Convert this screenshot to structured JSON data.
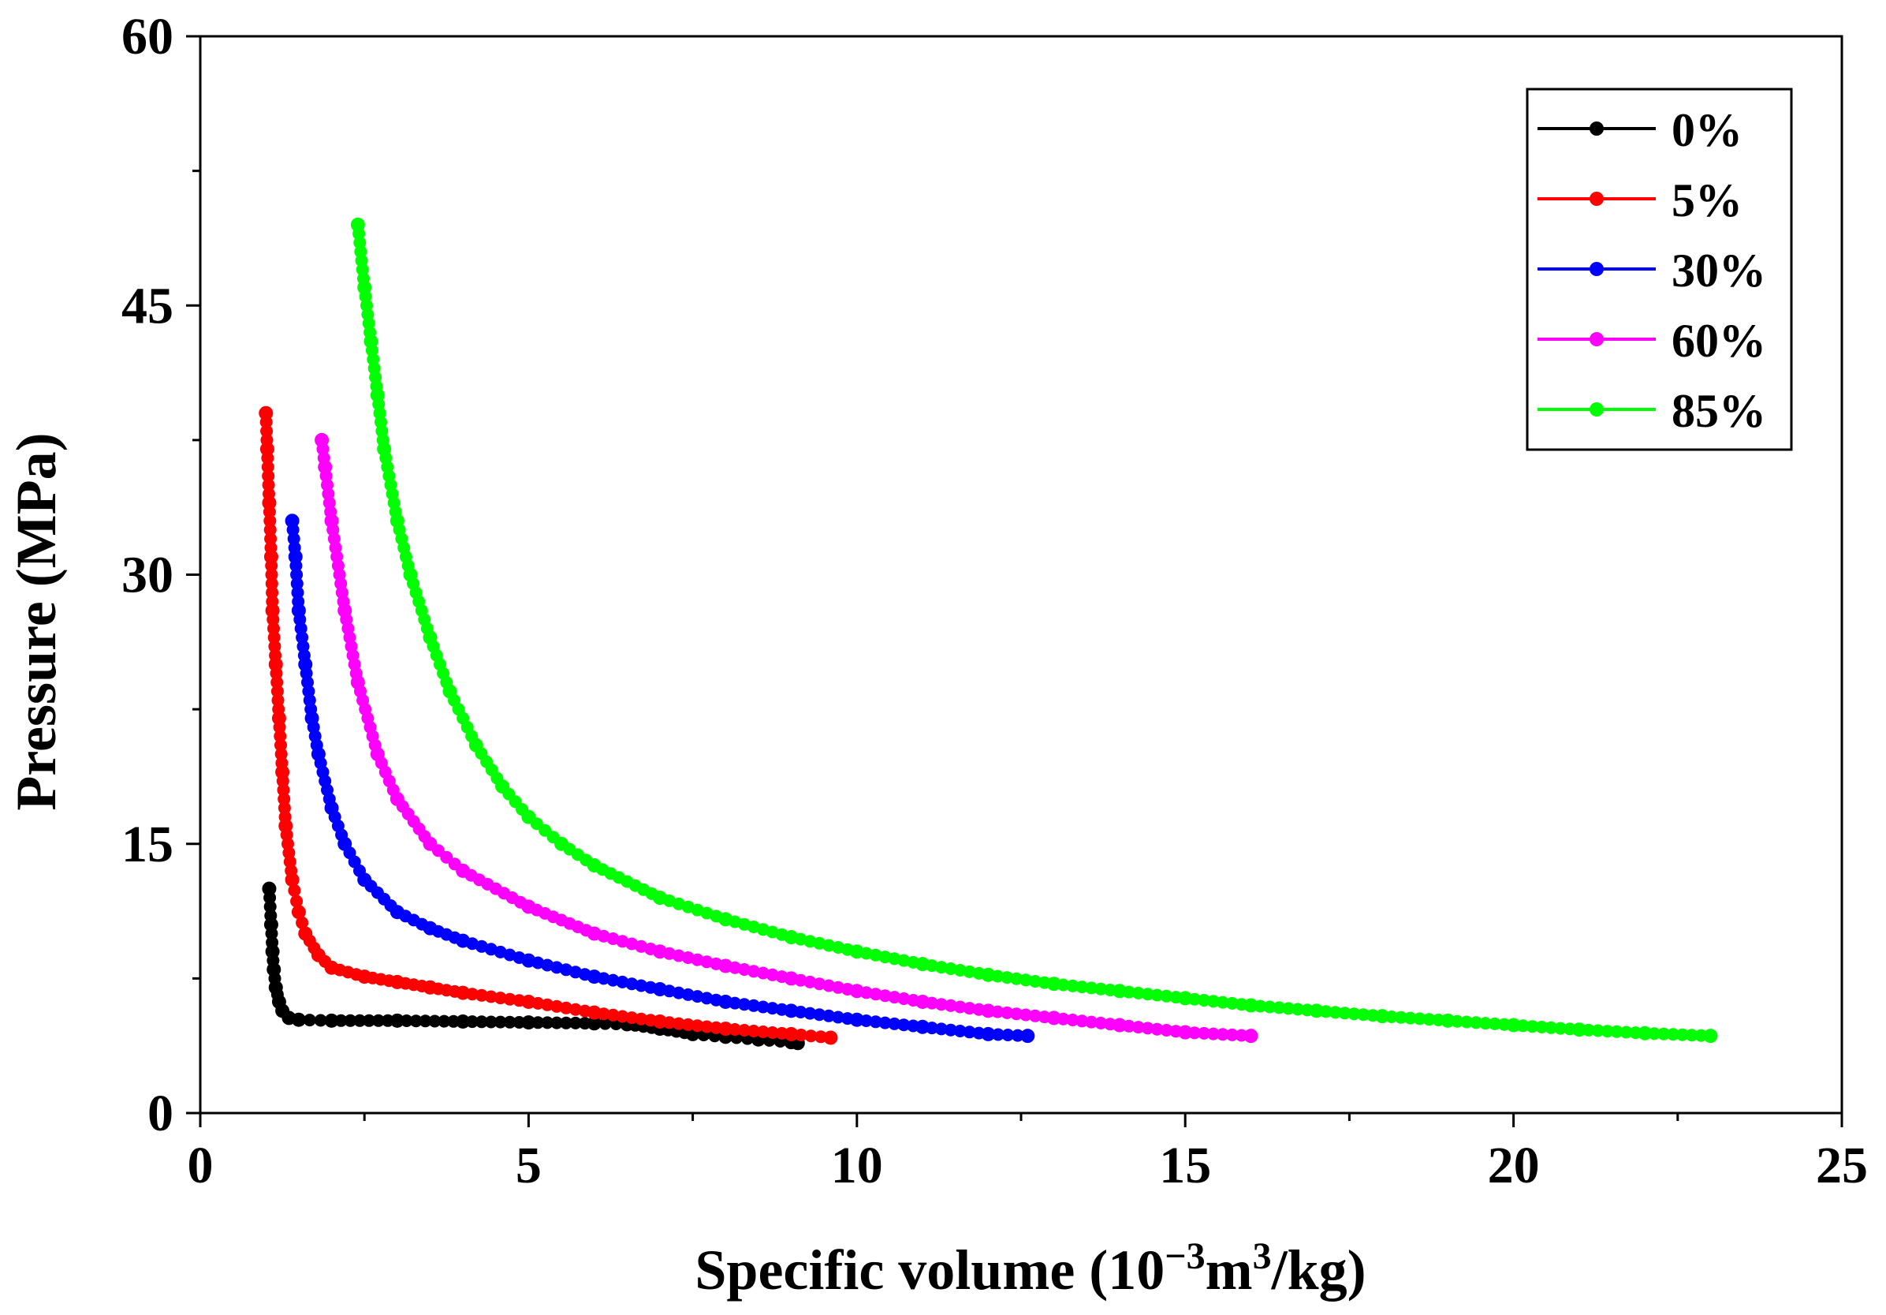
{
  "chart_data": {
    "type": "scatter",
    "title": "",
    "xlabel": {
      "main": "Specific volume (10",
      "exp1": "−3",
      "mid": "m",
      "exp2": "3",
      "end": "/kg)"
    },
    "ylabel": "Pressure (MPa)",
    "xlim": [
      0,
      25
    ],
    "ylim": [
      0,
      60
    ],
    "xticks": [
      0,
      5,
      10,
      15,
      20,
      25
    ],
    "yticks": [
      0,
      15,
      30,
      45,
      60
    ],
    "x_minor_step": 2.5,
    "y_minor_step": 7.5,
    "grid": false,
    "legend_position": "top-right",
    "series": [
      {
        "name": "0%",
        "color": "#000000",
        "x": [
          1.05,
          1.08,
          1.1,
          1.12,
          1.15,
          1.2,
          1.25,
          1.35,
          1.5,
          2,
          3,
          4,
          5,
          6,
          6.5,
          7,
          7.5,
          8,
          8.5,
          9,
          9.1
        ],
        "y": [
          12.5,
          10.5,
          9,
          8,
          7,
          6.2,
          5.7,
          5.3,
          5.2,
          5.15,
          5.15,
          5.1,
          5.05,
          5.0,
          4.95,
          4.7,
          4.4,
          4.25,
          4.1,
          3.95,
          3.9
        ]
      },
      {
        "name": "5%",
        "color": "#ff0000",
        "x": [
          1.0,
          1.02,
          1.05,
          1.08,
          1.1,
          1.15,
          1.2,
          1.25,
          1.3,
          1.4,
          1.5,
          1.6,
          1.8,
          2,
          2.5,
          3,
          3.5,
          4,
          5,
          6,
          7,
          8,
          9,
          9.6
        ],
        "y": [
          39,
          37,
          34,
          31,
          28,
          25,
          22,
          19,
          16,
          13,
          11.2,
          10,
          8.8,
          8.1,
          7.6,
          7.3,
          7.0,
          6.7,
          6.2,
          5.6,
          5.1,
          4.7,
          4.4,
          4.2
        ]
      },
      {
        "name": "30%",
        "color": "#0000ff",
        "x": [
          1.4,
          1.45,
          1.5,
          1.6,
          1.7,
          1.8,
          2,
          2.2,
          2.5,
          3,
          3.5,
          4,
          5,
          6,
          7,
          8,
          9,
          10,
          11,
          12,
          12.6
        ],
        "y": [
          33,
          31,
          28,
          25,
          22,
          20,
          17,
          15,
          13,
          11.2,
          10.3,
          9.6,
          8.5,
          7.6,
          6.9,
          6.2,
          5.7,
          5.2,
          4.8,
          4.4,
          4.3
        ]
      },
      {
        "name": "60%",
        "color": "#ff00ff",
        "x": [
          1.85,
          1.9,
          2,
          2.2,
          2.4,
          2.7,
          3,
          3.5,
          4,
          5,
          6,
          7,
          8,
          9,
          10,
          11,
          12,
          13,
          14,
          15,
          16
        ],
        "y": [
          37.5,
          36,
          33,
          28,
          24,
          20,
          17.5,
          15,
          13.5,
          11.5,
          10,
          9,
          8.2,
          7.5,
          6.8,
          6.2,
          5.7,
          5.3,
          4.9,
          4.5,
          4.3
        ]
      },
      {
        "name": "85%",
        "color": "#00ff00",
        "x": [
          2.4,
          2.5,
          2.6,
          2.7,
          2.8,
          3,
          3.2,
          3.5,
          3.8,
          4.2,
          4.6,
          5,
          5.5,
          6,
          7,
          8,
          9,
          10,
          11,
          12,
          13,
          14,
          15,
          16,
          17,
          18,
          19,
          20,
          21,
          22,
          23
        ],
        "y": [
          49.5,
          46,
          43,
          40,
          37,
          33,
          30,
          26.5,
          23.5,
          20.5,
          18.2,
          16.5,
          15,
          13.8,
          12,
          10.8,
          9.8,
          9.0,
          8.3,
          7.7,
          7.2,
          6.8,
          6.4,
          6.0,
          5.7,
          5.4,
          5.15,
          4.9,
          4.65,
          4.45,
          4.3
        ]
      }
    ]
  }
}
